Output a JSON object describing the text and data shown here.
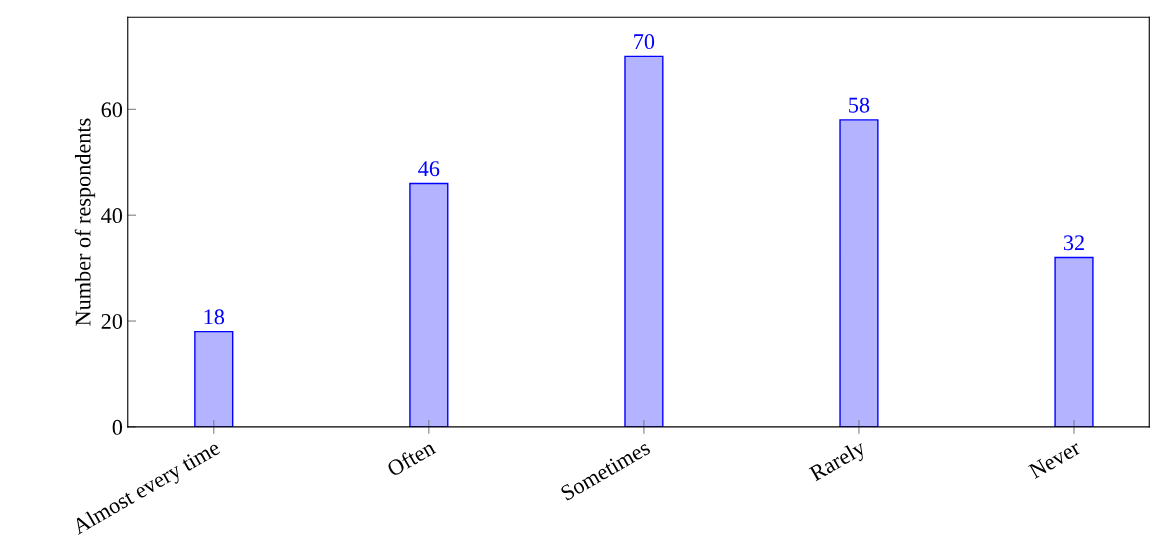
{
  "chart_data": {
    "type": "bar",
    "ylabel": "Number of respondents",
    "categories": [
      "Almost every time",
      "Often",
      "Sometimes",
      "Rarely",
      "Never"
    ],
    "series": [
      {
        "color": "#b3b3ff",
        "values": [
          18,
          46,
          70,
          58,
          32
        ]
      }
    ],
    "ylim": [
      0,
      77.4
    ],
    "yticks": [
      0,
      20,
      40,
      60
    ],
    "data_labels": true,
    "grid": false
  }
}
